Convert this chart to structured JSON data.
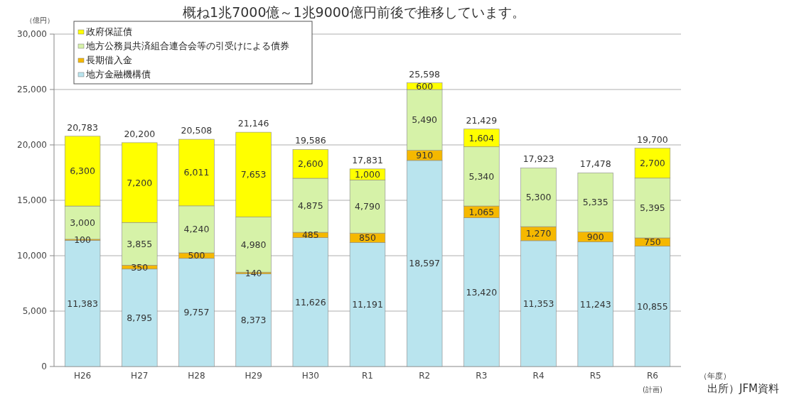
{
  "chart_data": {
    "type": "bar",
    "stacked": true,
    "title": "概ね1兆7000億～1兆9000億円前後で推移しています。",
    "ylabel": "（億円）",
    "xlabel": "（年度）",
    "annotations": [
      "出所）JFM資料"
    ],
    "categories": [
      "H26",
      "H27",
      "H28",
      "H29",
      "H30",
      "R1",
      "R2",
      "R3",
      "R4",
      "R5",
      "R6$_{(計画)}$"
    ],
    "series": [
      {
        "name": "地方金融機構債",
        "color": "#b9e4ee",
        "values": [
          11383,
          8795,
          9757,
          8373,
          11626,
          11191,
          18597,
          13420,
          11353,
          11243,
          10855
        ],
        "value_labels": [
          "11,383",
          "8,795",
          "9,757",
          "8,373",
          "11,626",
          "11,191",
          "18,597",
          "13,420",
          "11,353",
          "11,243",
          "10,855"
        ]
      },
      {
        "name": "長期借入金",
        "color": "#f5b800",
        "values": [
          100,
          350,
          500,
          140,
          485,
          850,
          910,
          1065,
          1270,
          900,
          750
        ],
        "value_labels": [
          "100",
          "350",
          "500",
          "140",
          "485",
          "850",
          "910",
          "1,065",
          "1,270",
          "900",
          "750"
        ]
      },
      {
        "name": "地方公務員共済組合連合会等の引受けによる債券",
        "color": "#d6f2a8",
        "values": [
          3000,
          3855,
          4240,
          4980,
          4875,
          4790,
          5490,
          5340,
          5300,
          5335,
          5395
        ],
        "value_labels": [
          "3,000",
          "3,855",
          "4,240",
          "4,980",
          "4,875",
          "4,790",
          "5,490",
          "5,340",
          "5,300",
          "5,335",
          "5,395"
        ]
      },
      {
        "name": "政府保証債",
        "color": "#ffff00",
        "values": [
          6300,
          7200,
          6011,
          7653,
          2600,
          1000,
          600,
          1604,
          null,
          null,
          2700
        ],
        "value_labels": [
          "6,300",
          "7,200",
          "6,011",
          "7,653",
          "2,600",
          "1,000",
          "600",
          "1,604",
          null,
          null,
          "2,700"
        ]
      }
    ],
    "totals": [
      "20,783",
      "20,200",
      "20,508",
      "21,146",
      "19,586",
      "17,831",
      "25,598",
      "21,429",
      "17,923",
      "17,478",
      "19,700"
    ],
    "ylim": [
      0,
      30000
    ],
    "yticks": [
      {
        "value": 0,
        "label": "0"
      },
      {
        "value": 5000,
        "label": "5,000"
      },
      {
        "value": 10000,
        "label": "10,000"
      },
      {
        "value": 15000,
        "label": "15,000"
      },
      {
        "value": 20000,
        "label": "20,000"
      },
      {
        "value": 25000,
        "label": "25,000"
      },
      {
        "value": 30000,
        "label": "30,000"
      }
    ],
    "grid": "y",
    "legend": "top left"
  }
}
